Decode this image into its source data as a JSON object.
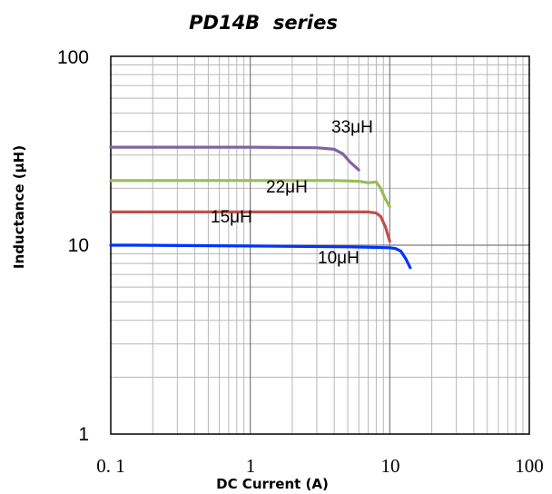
{
  "chart_data": {
    "type": "line",
    "title": "PD14B  series",
    "xlabel": "DC Current (A)",
    "ylabel": "Inductance (μH)",
    "xscale": "log",
    "yscale": "log",
    "xlim": [
      0.1,
      100
    ],
    "ylim": [
      1,
      100
    ],
    "x_tick_labels": [
      "0. 1",
      "1",
      "10",
      "100"
    ],
    "y_tick_labels": [
      "100",
      "10",
      "1"
    ],
    "grid": true,
    "series": [
      {
        "name": "33μH",
        "color": "#8064a2",
        "x": [
          0.1,
          1,
          3,
          4,
          4.6,
          5.2,
          6
        ],
        "y": [
          33,
          33,
          32.8,
          32.2,
          30.5,
          27.5,
          25
        ]
      },
      {
        "name": "22μH",
        "color": "#9bbb59",
        "x": [
          0.1,
          1,
          4,
          6,
          7,
          8,
          8.6,
          9.3,
          10
        ],
        "y": [
          22,
          22,
          22,
          21.8,
          21.4,
          21.6,
          20,
          17.5,
          16
        ]
      },
      {
        "name": "15μH",
        "color": "#c0504d",
        "x": [
          0.1,
          1,
          5,
          7,
          8,
          8.6,
          9.3,
          10
        ],
        "y": [
          15,
          15,
          15,
          15,
          14.8,
          14.2,
          12.5,
          10.5
        ]
      },
      {
        "name": "10μH",
        "color": "#0033ff",
        "x": [
          0.1,
          0.15,
          1,
          5,
          10,
          11,
          12,
          13,
          14
        ],
        "y": [
          10,
          10,
          9.9,
          9.8,
          9.7,
          9.6,
          9.3,
          8.5,
          7.6
        ]
      }
    ]
  }
}
